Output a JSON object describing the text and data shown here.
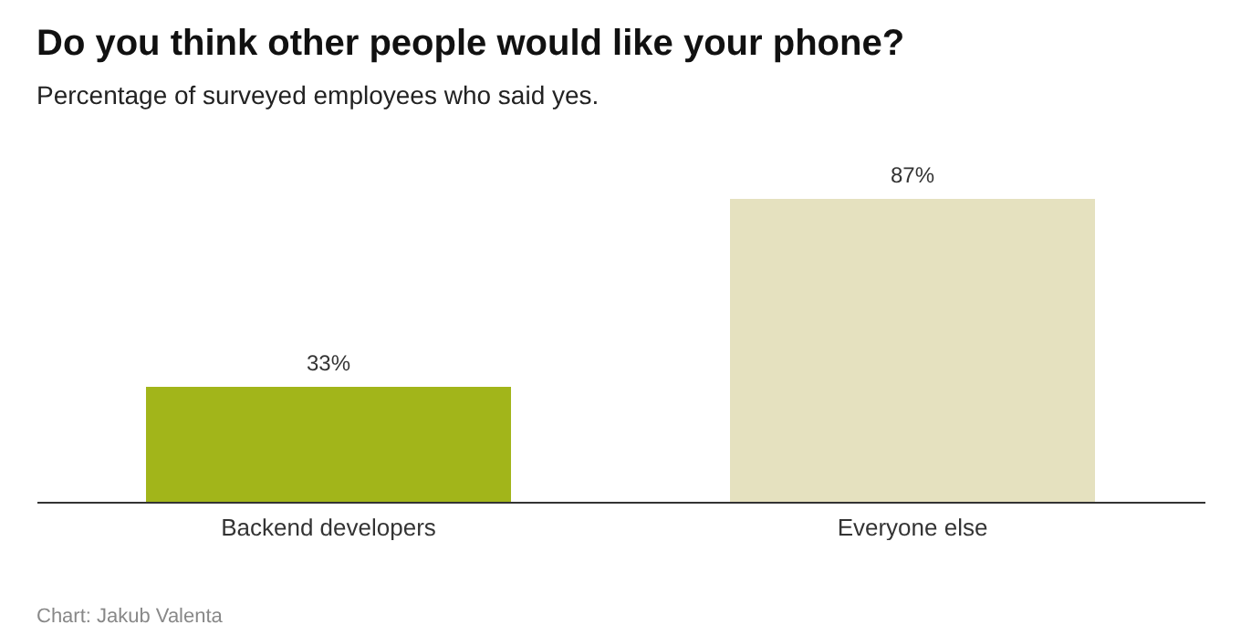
{
  "chart_data": {
    "type": "bar",
    "title": "Do you think other people would like your phone?",
    "subtitle": "Percentage of surveyed employees who said yes.",
    "categories": [
      "Backend developers",
      "Everyone else"
    ],
    "values": [
      33,
      87
    ],
    "colors": [
      "#a2b51a",
      "#e5e1bf"
    ],
    "value_labels": [
      "33%",
      "87%"
    ],
    "annotations": [
      "Chart: Jakub Valenta"
    ]
  }
}
